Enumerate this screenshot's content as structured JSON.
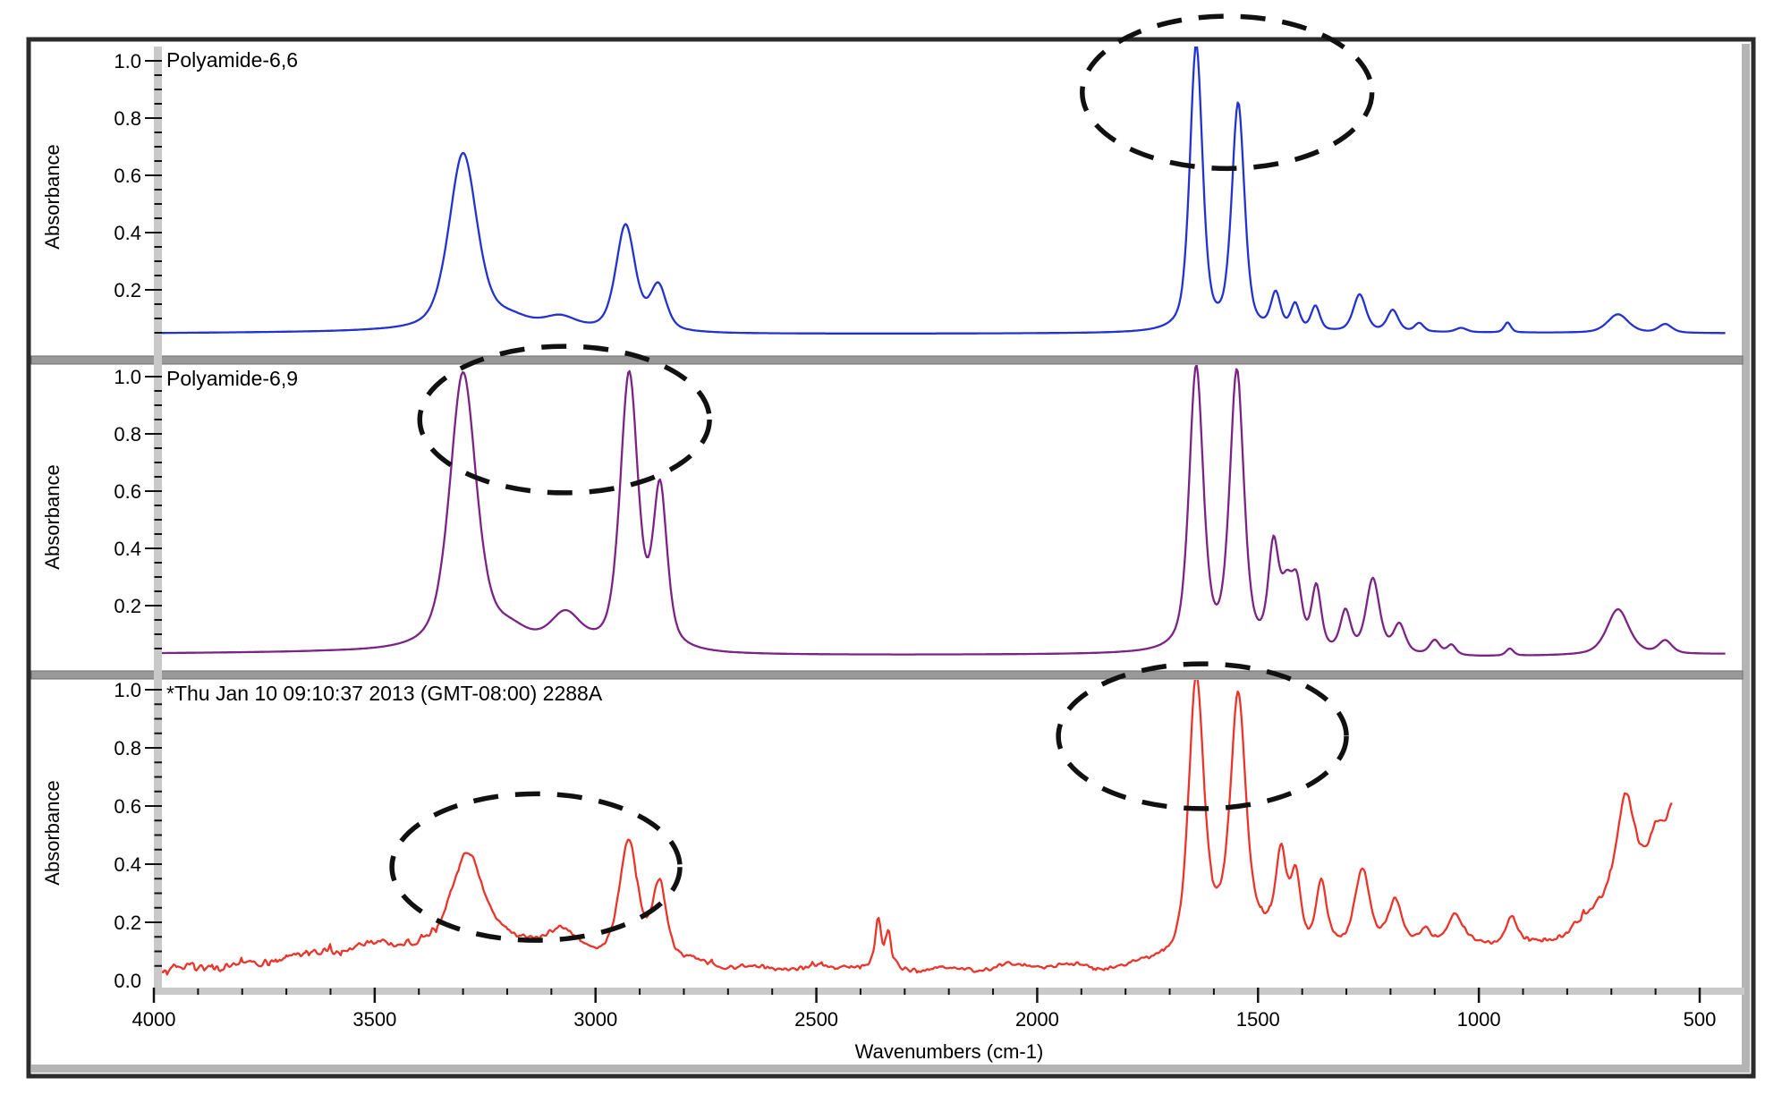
{
  "window": {
    "frame_color": "#2b2b2b",
    "inner_edge_color": "#b4b4b4",
    "separator_color": "#999999",
    "axis_bar_color": "#c9c9c9",
    "background": "#ffffff"
  },
  "panels": [
    {
      "id": "polyamide-66",
      "show_zero_label": false
    },
    {
      "id": "polyamide-69",
      "show_zero_label": false
    },
    {
      "id": "sample-2288a",
      "show_zero_label": true
    }
  ],
  "chart_data": {
    "type": "line",
    "title": "",
    "x_axis": {
      "label": "Wavenumbers (cm-1)",
      "unit": "cm-1",
      "range": [
        4000,
        440
      ],
      "reversed": true,
      "ticks": [
        4000,
        3500,
        3000,
        2500,
        2000,
        1500,
        1000,
        500
      ],
      "minor_tick_step": 100
    },
    "y_axis": {
      "label": "Absorbance",
      "range": [
        0,
        1.05
      ],
      "ticks": [
        0.2,
        0.4,
        0.6,
        0.8,
        1.0
      ],
      "minor_tick_step": 0.05
    },
    "series": [
      {
        "name": "Polyamide-6,6",
        "color": "#2333cf",
        "panel": 0,
        "range": [
          4000,
          440
        ],
        "eta": 0.5,
        "baseline": [
          [
            4000,
            0.048
          ],
          [
            3500,
            0.052
          ],
          [
            2700,
            0.045
          ],
          [
            1800,
            0.047
          ],
          [
            1100,
            0.05
          ],
          [
            440,
            0.048
          ]
        ],
        "peaks": [
          [
            3300,
            0.62,
            38
          ],
          [
            3195,
            0.04,
            55
          ],
          [
            3080,
            0.045,
            45
          ],
          [
            2932,
            0.37,
            26
          ],
          [
            2858,
            0.155,
            22
          ],
          [
            1640,
            1.0,
            17
          ],
          [
            1545,
            0.79,
            17
          ],
          [
            1460,
            0.125,
            13
          ],
          [
            1416,
            0.09,
            12
          ],
          [
            1370,
            0.085,
            12
          ],
          [
            1270,
            0.13,
            17
          ],
          [
            1195,
            0.075,
            15
          ],
          [
            1135,
            0.03,
            12
          ],
          [
            1040,
            0.015,
            15
          ],
          [
            935,
            0.035,
            9
          ],
          [
            685,
            0.065,
            28
          ],
          [
            578,
            0.03,
            18
          ]
        ]
      },
      {
        "name": "Polyamide-6,9",
        "color": "#7b2485",
        "panel": 1,
        "range": [
          4000,
          440
        ],
        "eta": 0.55,
        "baseline": [
          [
            4000,
            0.032
          ],
          [
            3600,
            0.035
          ],
          [
            2700,
            0.025
          ],
          [
            1800,
            0.028
          ],
          [
            1000,
            0.02
          ],
          [
            440,
            0.03
          ]
        ],
        "peaks": [
          [
            3300,
            0.97,
            36
          ],
          [
            3195,
            0.06,
            55
          ],
          [
            3068,
            0.12,
            42
          ],
          [
            2924,
            0.96,
            24
          ],
          [
            2854,
            0.55,
            19
          ],
          [
            1640,
            0.99,
            19
          ],
          [
            1548,
            0.97,
            19
          ],
          [
            1465,
            0.345,
            14
          ],
          [
            1435,
            0.19,
            16
          ],
          [
            1412,
            0.2,
            14
          ],
          [
            1368,
            0.22,
            13
          ],
          [
            1302,
            0.14,
            14
          ],
          [
            1240,
            0.26,
            18
          ],
          [
            1180,
            0.1,
            16
          ],
          [
            1100,
            0.05,
            14
          ],
          [
            1062,
            0.035,
            12
          ],
          [
            930,
            0.025,
            10
          ],
          [
            685,
            0.16,
            30
          ],
          [
            578,
            0.045,
            18
          ]
        ]
      },
      {
        "name": "*Thu Jan 10 09:10:37 2013 (GMT-08:00) 2288A",
        "color": "#e9352b",
        "panel": 2,
        "range": [
          4000,
          562
        ],
        "eta": 0.55,
        "baseline": [
          [
            4000,
            0.028
          ],
          [
            3820,
            0.05
          ],
          [
            3700,
            0.08
          ],
          [
            3600,
            0.1
          ],
          [
            3500,
            0.115
          ],
          [
            3420,
            0.12
          ],
          [
            3350,
            0.115
          ],
          [
            3250,
            0.12
          ],
          [
            3150,
            0.125
          ],
          [
            3050,
            0.1
          ],
          [
            2950,
            0.075
          ],
          [
            2850,
            0.055
          ],
          [
            2750,
            0.045
          ],
          [
            2300,
            0.04
          ],
          [
            1800,
            0.042
          ],
          [
            1600,
            0.05
          ],
          [
            1500,
            0.06
          ],
          [
            1430,
            0.08
          ],
          [
            1350,
            0.09
          ],
          [
            1250,
            0.1
          ],
          [
            1150,
            0.12
          ],
          [
            1050,
            0.14
          ],
          [
            1000,
            0.13
          ],
          [
            900,
            0.12
          ],
          [
            850,
            0.13
          ],
          [
            800,
            0.16
          ],
          [
            750,
            0.22
          ],
          [
            700,
            0.32
          ],
          [
            670,
            0.42
          ],
          [
            640,
            0.4
          ],
          [
            620,
            0.42
          ],
          [
            600,
            0.46
          ],
          [
            580,
            0.52
          ],
          [
            562,
            0.6
          ]
        ],
        "peaks": [
          [
            3290,
            0.33,
            42
          ],
          [
            3075,
            0.055,
            35
          ],
          [
            2925,
            0.4,
            25
          ],
          [
            2855,
            0.27,
            19
          ],
          [
            2360,
            0.16,
            8
          ],
          [
            2337,
            0.11,
            7
          ],
          [
            1550,
            0.12,
            90
          ],
          [
            1640,
            0.915,
            20
          ],
          [
            1545,
            0.8,
            20
          ],
          [
            1448,
            0.3,
            14
          ],
          [
            1415,
            0.24,
            14
          ],
          [
            1357,
            0.215,
            14
          ],
          [
            1264,
            0.27,
            20
          ],
          [
            1190,
            0.14,
            18
          ],
          [
            1122,
            0.05,
            15
          ],
          [
            1053,
            0.08,
            18
          ],
          [
            926,
            0.09,
            14
          ],
          [
            668,
            0.24,
            22
          ],
          [
            600,
            0.07,
            12
          ]
        ],
        "noise": {
          "bands": [
            [
              3350,
              4000,
              0.016
            ],
            [
              2450,
              3350,
              0.01
            ],
            [
              2250,
              2450,
              0.013
            ],
            [
              1780,
              2250,
              0.009
            ],
            [
              900,
              1780,
              0.008
            ],
            [
              562,
              900,
              0.013
            ]
          ],
          "wobble": [
            [
              23,
              0.007
            ],
            [
              61,
              0.005
            ]
          ]
        }
      }
    ],
    "annotations": [
      {
        "panel": 0,
        "shape": "dashed-ellipse",
        "center_wavenumber": 1570,
        "center_absorbance": 0.89,
        "rx_wavenumber": 328,
        "ry_absorbance": 0.266
      },
      {
        "panel": 1,
        "shape": "dashed-ellipse",
        "center_wavenumber": 3070,
        "center_absorbance": 0.85,
        "rx_wavenumber": 328,
        "ry_absorbance": 0.256
      },
      {
        "panel": 2,
        "shape": "dashed-ellipse",
        "center_wavenumber": 3135,
        "center_absorbance": 0.39,
        "rx_wavenumber": 326,
        "ry_absorbance": 0.252
      },
      {
        "panel": 2,
        "shape": "dashed-ellipse",
        "center_wavenumber": 1626,
        "center_absorbance": 0.84,
        "rx_wavenumber": 326,
        "ry_absorbance": 0.249
      }
    ]
  }
}
